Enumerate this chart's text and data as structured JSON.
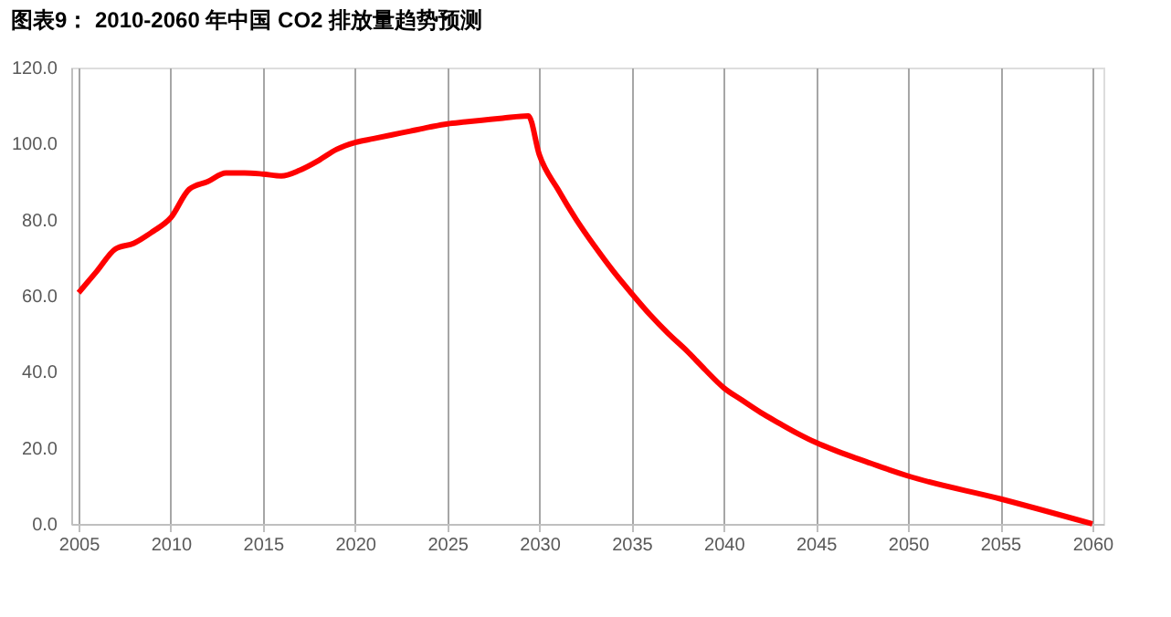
{
  "chart_data": {
    "type": "line",
    "title": "图表9：  2010-2060 年中国 CO2 排放量趋势预测",
    "x": [
      2005,
      2006,
      2007,
      2008,
      2009,
      2010,
      2011,
      2012,
      2013,
      2014,
      2015,
      2016,
      2017,
      2018,
      2019,
      2020,
      2021,
      2022,
      2023,
      2024,
      2025,
      2026,
      2027,
      2028,
      2029.4,
      2030,
      2031,
      2032,
      2033,
      2034,
      2035,
      2036,
      2037,
      2038,
      2039,
      2040,
      2041,
      2042,
      2043,
      2044,
      2045,
      2046,
      2047,
      2048,
      2049,
      2050,
      2055,
      2060
    ],
    "series": [
      {
        "color": "#ff0000",
        "values": [
          60.8,
          66.5,
          72.3,
          73.8,
          76.8,
          80.5,
          88,
          90,
          92.3,
          92.3,
          92,
          91.5,
          93,
          95.5,
          98.5,
          100.3,
          101.3,
          102.3,
          103.3,
          104.3,
          105.2,
          105.7,
          106.2,
          106.7,
          107.3,
          97,
          88,
          80,
          73,
          66.5,
          60.6,
          55,
          50,
          45.5,
          40.5,
          35.8,
          32.5,
          29.3,
          26.5,
          23.8,
          21.4,
          19.4,
          17.6,
          15.9,
          14.2,
          12.6,
          6.6,
          0
        ]
      }
    ],
    "xlim": [
      2004.6,
      2060.6
    ],
    "xticks": [
      2005,
      2010,
      2015,
      2020,
      2025,
      2030,
      2035,
      2040,
      2045,
      2050,
      2055,
      2060
    ],
    "ylim": [
      0,
      120
    ],
    "yticks": [
      {
        "value": 0,
        "label": "0.0"
      },
      {
        "value": 20,
        "label": "20.0"
      },
      {
        "value": 40,
        "label": "40.0"
      },
      {
        "value": 60,
        "label": "60.0"
      },
      {
        "value": 80,
        "label": "80.0"
      },
      {
        "value": 100,
        "label": "100.0"
      },
      {
        "value": 120,
        "label": "120.0"
      }
    ],
    "grid": "x",
    "legend": false,
    "marker": "none",
    "line_style": "solid"
  }
}
